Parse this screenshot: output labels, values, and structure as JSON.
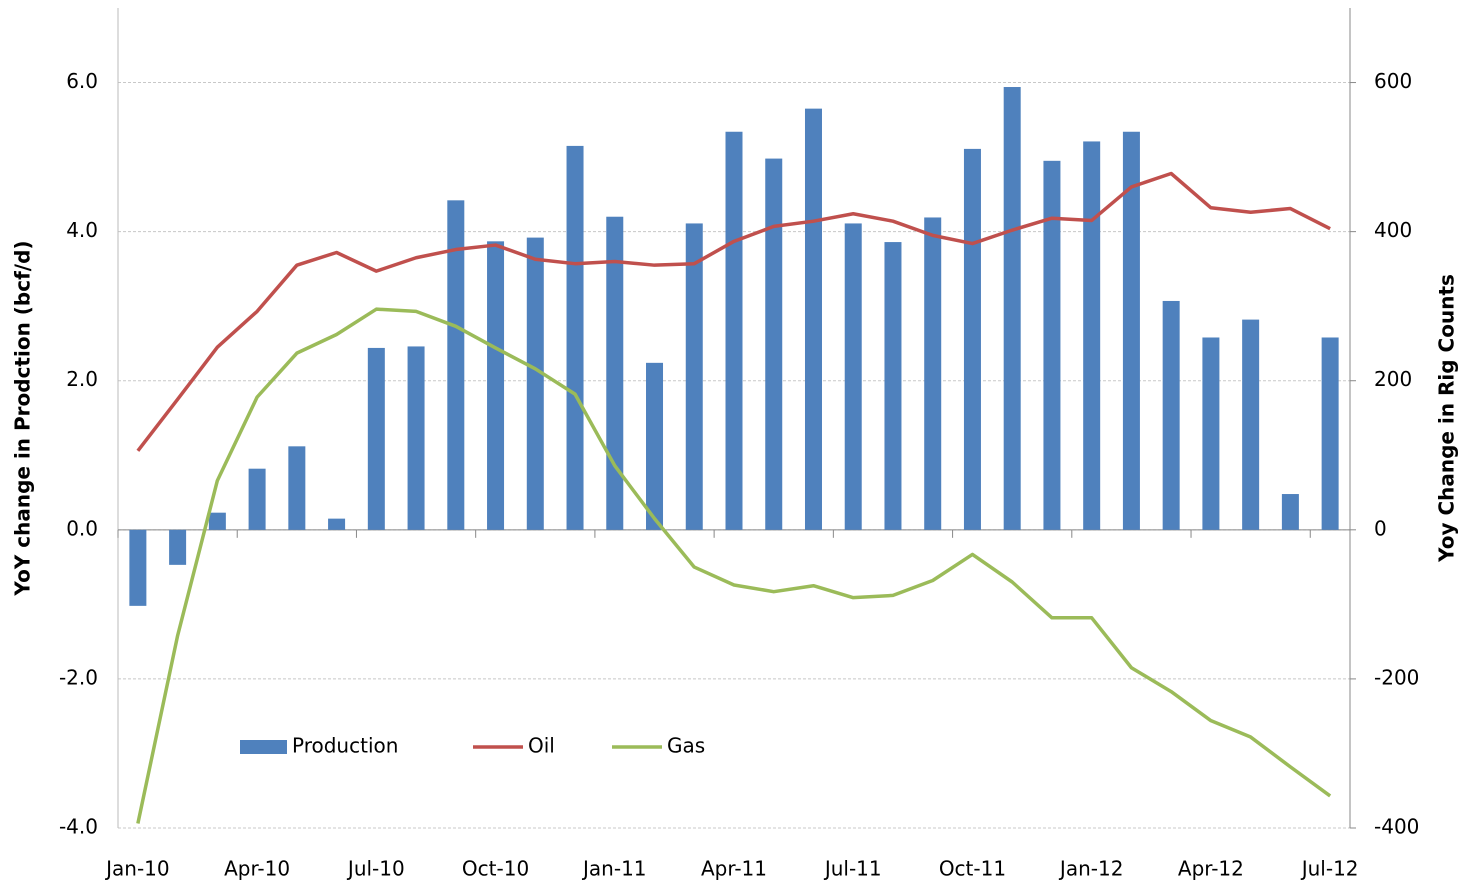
{
  "chart_data": {
    "type": "bar_line",
    "y_label": "YoY change in Prodction (bcf/d)",
    "y2_label": "Yoy Change in Rig Counts",
    "categories": [
      "Jan-10",
      null,
      null,
      "Apr-10",
      null,
      null,
      "Jul-10",
      null,
      null,
      "Oct-10",
      null,
      null,
      "Jan-11",
      null,
      null,
      "Apr-11",
      null,
      null,
      "Jul-11",
      null,
      null,
      "Oct-11",
      null,
      null,
      "Jan-12",
      null,
      null,
      "Apr-12",
      null,
      null,
      "Jul-12"
    ],
    "series": [
      {
        "name": "Production",
        "type": "bar",
        "color": "#4f81bd",
        "values": [
          -1.02,
          -0.47,
          0.23,
          0.82,
          1.12,
          0.15,
          2.44,
          2.46,
          4.42,
          3.87,
          3.92,
          5.15,
          4.2,
          2.24,
          4.11,
          5.34,
          4.98,
          5.65,
          4.11,
          3.86,
          4.19,
          5.11,
          5.94,
          4.95,
          5.21,
          5.34,
          3.07,
          2.58,
          2.82,
          0.48,
          2.58
        ]
      },
      {
        "name": "Oil",
        "type": "line",
        "axis": "y2",
        "color": "#c0504d",
        "values": [
          106,
          175,
          245,
          293,
          355,
          372,
          347,
          365,
          376,
          382,
          363,
          357,
          360,
          355,
          357,
          387,
          407,
          414,
          424,
          414,
          395,
          384,
          402,
          418,
          415,
          460,
          478,
          432,
          426,
          431,
          404
        ]
      },
      {
        "name": "Gas",
        "type": "line",
        "axis": "y2",
        "color": "#9bbb59",
        "values": [
          -394,
          -142,
          66,
          178,
          237,
          262,
          296,
          293,
          273,
          244,
          216,
          182,
          86,
          15,
          -50,
          -74,
          -83,
          -75,
          -91,
          -88,
          -68,
          -33,
          -70,
          -118,
          -118,
          -185,
          -217,
          -256,
          -278,
          -318,
          -357
        ]
      }
    ],
    "ylim": [
      -4,
      7
    ],
    "yticks": [
      {
        "value": -4,
        "label": "-4.0"
      },
      {
        "value": -2,
        "label": "-2.0"
      },
      {
        "value": 0,
        "label": "0.0"
      },
      {
        "value": 2,
        "label": "2.0"
      },
      {
        "value": 4,
        "label": "4.0"
      },
      {
        "value": 6,
        "label": "6.0"
      }
    ],
    "y2lim": [
      -400,
      700
    ],
    "y2ticks": [
      -400,
      -200,
      0,
      200,
      400,
      600
    ],
    "grid": true,
    "legend": "lower left"
  }
}
